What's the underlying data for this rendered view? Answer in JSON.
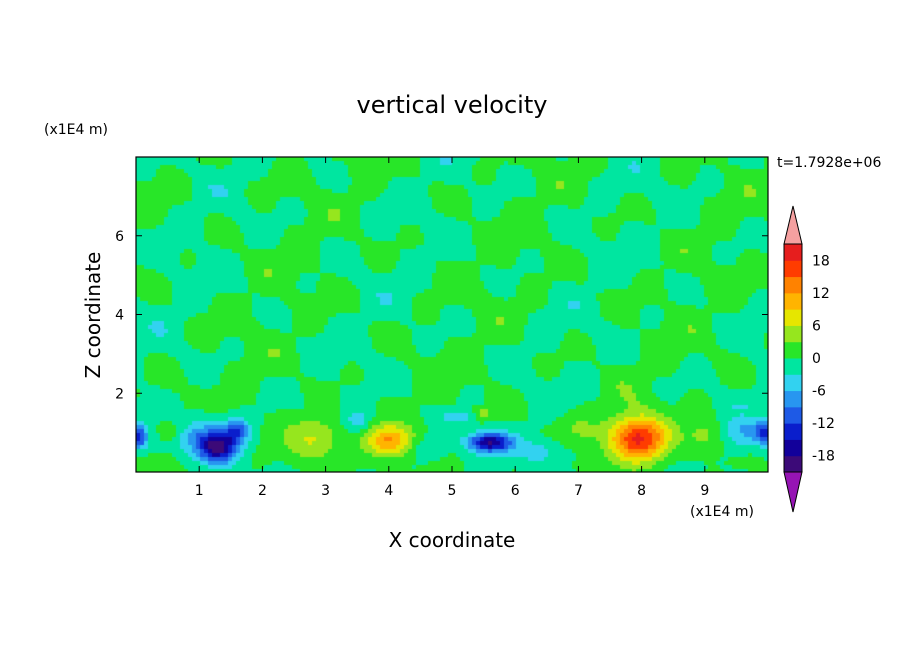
{
  "chart_data": {
    "type": "heatmap",
    "title": "vertical velocity",
    "xlabel": "X coordinate",
    "ylabel": "Z coordinate",
    "x_unit": "(x1E4 m)",
    "y_unit": "(x1E4 m)",
    "time_label": "t=1.7928e+06",
    "xlim": [
      0,
      10
    ],
    "ylim": [
      0,
      8
    ],
    "x_ticks": [
      1,
      2,
      3,
      4,
      5,
      6,
      7,
      8,
      9
    ],
    "y_ticks": [
      2,
      4,
      6
    ],
    "colorbar": {
      "levels": [
        -21,
        -18,
        -15,
        -12,
        -9,
        -6,
        -3,
        0,
        3,
        6,
        9,
        12,
        15,
        18,
        21
      ],
      "tick_labels": [
        18,
        12,
        6,
        0,
        -6,
        -12,
        -18
      ],
      "colors": [
        "#3c0a78",
        "#12009a",
        "#0a1ecc",
        "#1e5ae6",
        "#2896f0",
        "#32d2f0",
        "#00e6a0",
        "#28e628",
        "#96e61e",
        "#e6e600",
        "#ffb400",
        "#ff8200",
        "#ff3c00",
        "#e61e1e"
      ],
      "over_color": "#f5a0a0",
      "under_color": "#9614b4"
    },
    "features": [
      {
        "x": 0.6,
        "z": 0.8,
        "value": -5,
        "sx": 0.3,
        "sz": 0.3
      },
      {
        "x": 1.0,
        "z": 1.0,
        "value": -4,
        "sx": 0.3,
        "sz": 0.5
      },
      {
        "x": 1.3,
        "z": 0.65,
        "value": -19,
        "sx": 0.32,
        "sz": 0.42
      },
      {
        "x": 1.6,
        "z": 1.05,
        "value": -10,
        "sx": 0.2,
        "sz": 0.3
      },
      {
        "x": 0.55,
        "z": 0.9,
        "value": 5,
        "sx": 0.2,
        "sz": 0.3
      },
      {
        "x": 0.05,
        "z": 0.9,
        "value": -13,
        "sx": 0.12,
        "sz": 0.3
      },
      {
        "x": 2.8,
        "z": 0.85,
        "value": 7,
        "sx": 0.45,
        "sz": 0.55
      },
      {
        "x": 3.5,
        "z": 1.3,
        "value": -5,
        "sx": 0.2,
        "sz": 0.3
      },
      {
        "x": 4.0,
        "z": 0.8,
        "value": 12,
        "sx": 0.35,
        "sz": 0.4
      },
      {
        "x": 4.65,
        "z": 0.6,
        "value": -4,
        "sx": 0.25,
        "sz": 0.3
      },
      {
        "x": 5.1,
        "z": 1.4,
        "value": -6,
        "sx": 0.25,
        "sz": 0.12
      },
      {
        "x": 5.6,
        "z": 0.75,
        "value": -18,
        "sx": 0.35,
        "sz": 0.25
      },
      {
        "x": 5.5,
        "z": 1.5,
        "value": 5,
        "sx": 0.15,
        "sz": 0.15
      },
      {
        "x": 6.4,
        "z": 0.5,
        "value": -4,
        "sx": 0.4,
        "sz": 0.3
      },
      {
        "x": 7.0,
        "z": 1.1,
        "value": 3,
        "sx": 0.3,
        "sz": 0.4
      },
      {
        "x": 7.95,
        "z": 0.85,
        "value": 19,
        "sx": 0.45,
        "sz": 0.55
      },
      {
        "x": 9.0,
        "z": 0.9,
        "value": 4,
        "sx": 0.3,
        "sz": 0.4
      },
      {
        "x": 9.6,
        "z": 1.0,
        "value": -6,
        "sx": 0.3,
        "sz": 0.4
      },
      {
        "x": 9.95,
        "z": 1.0,
        "value": -12,
        "sx": 0.15,
        "sz": 0.3
      }
    ]
  }
}
